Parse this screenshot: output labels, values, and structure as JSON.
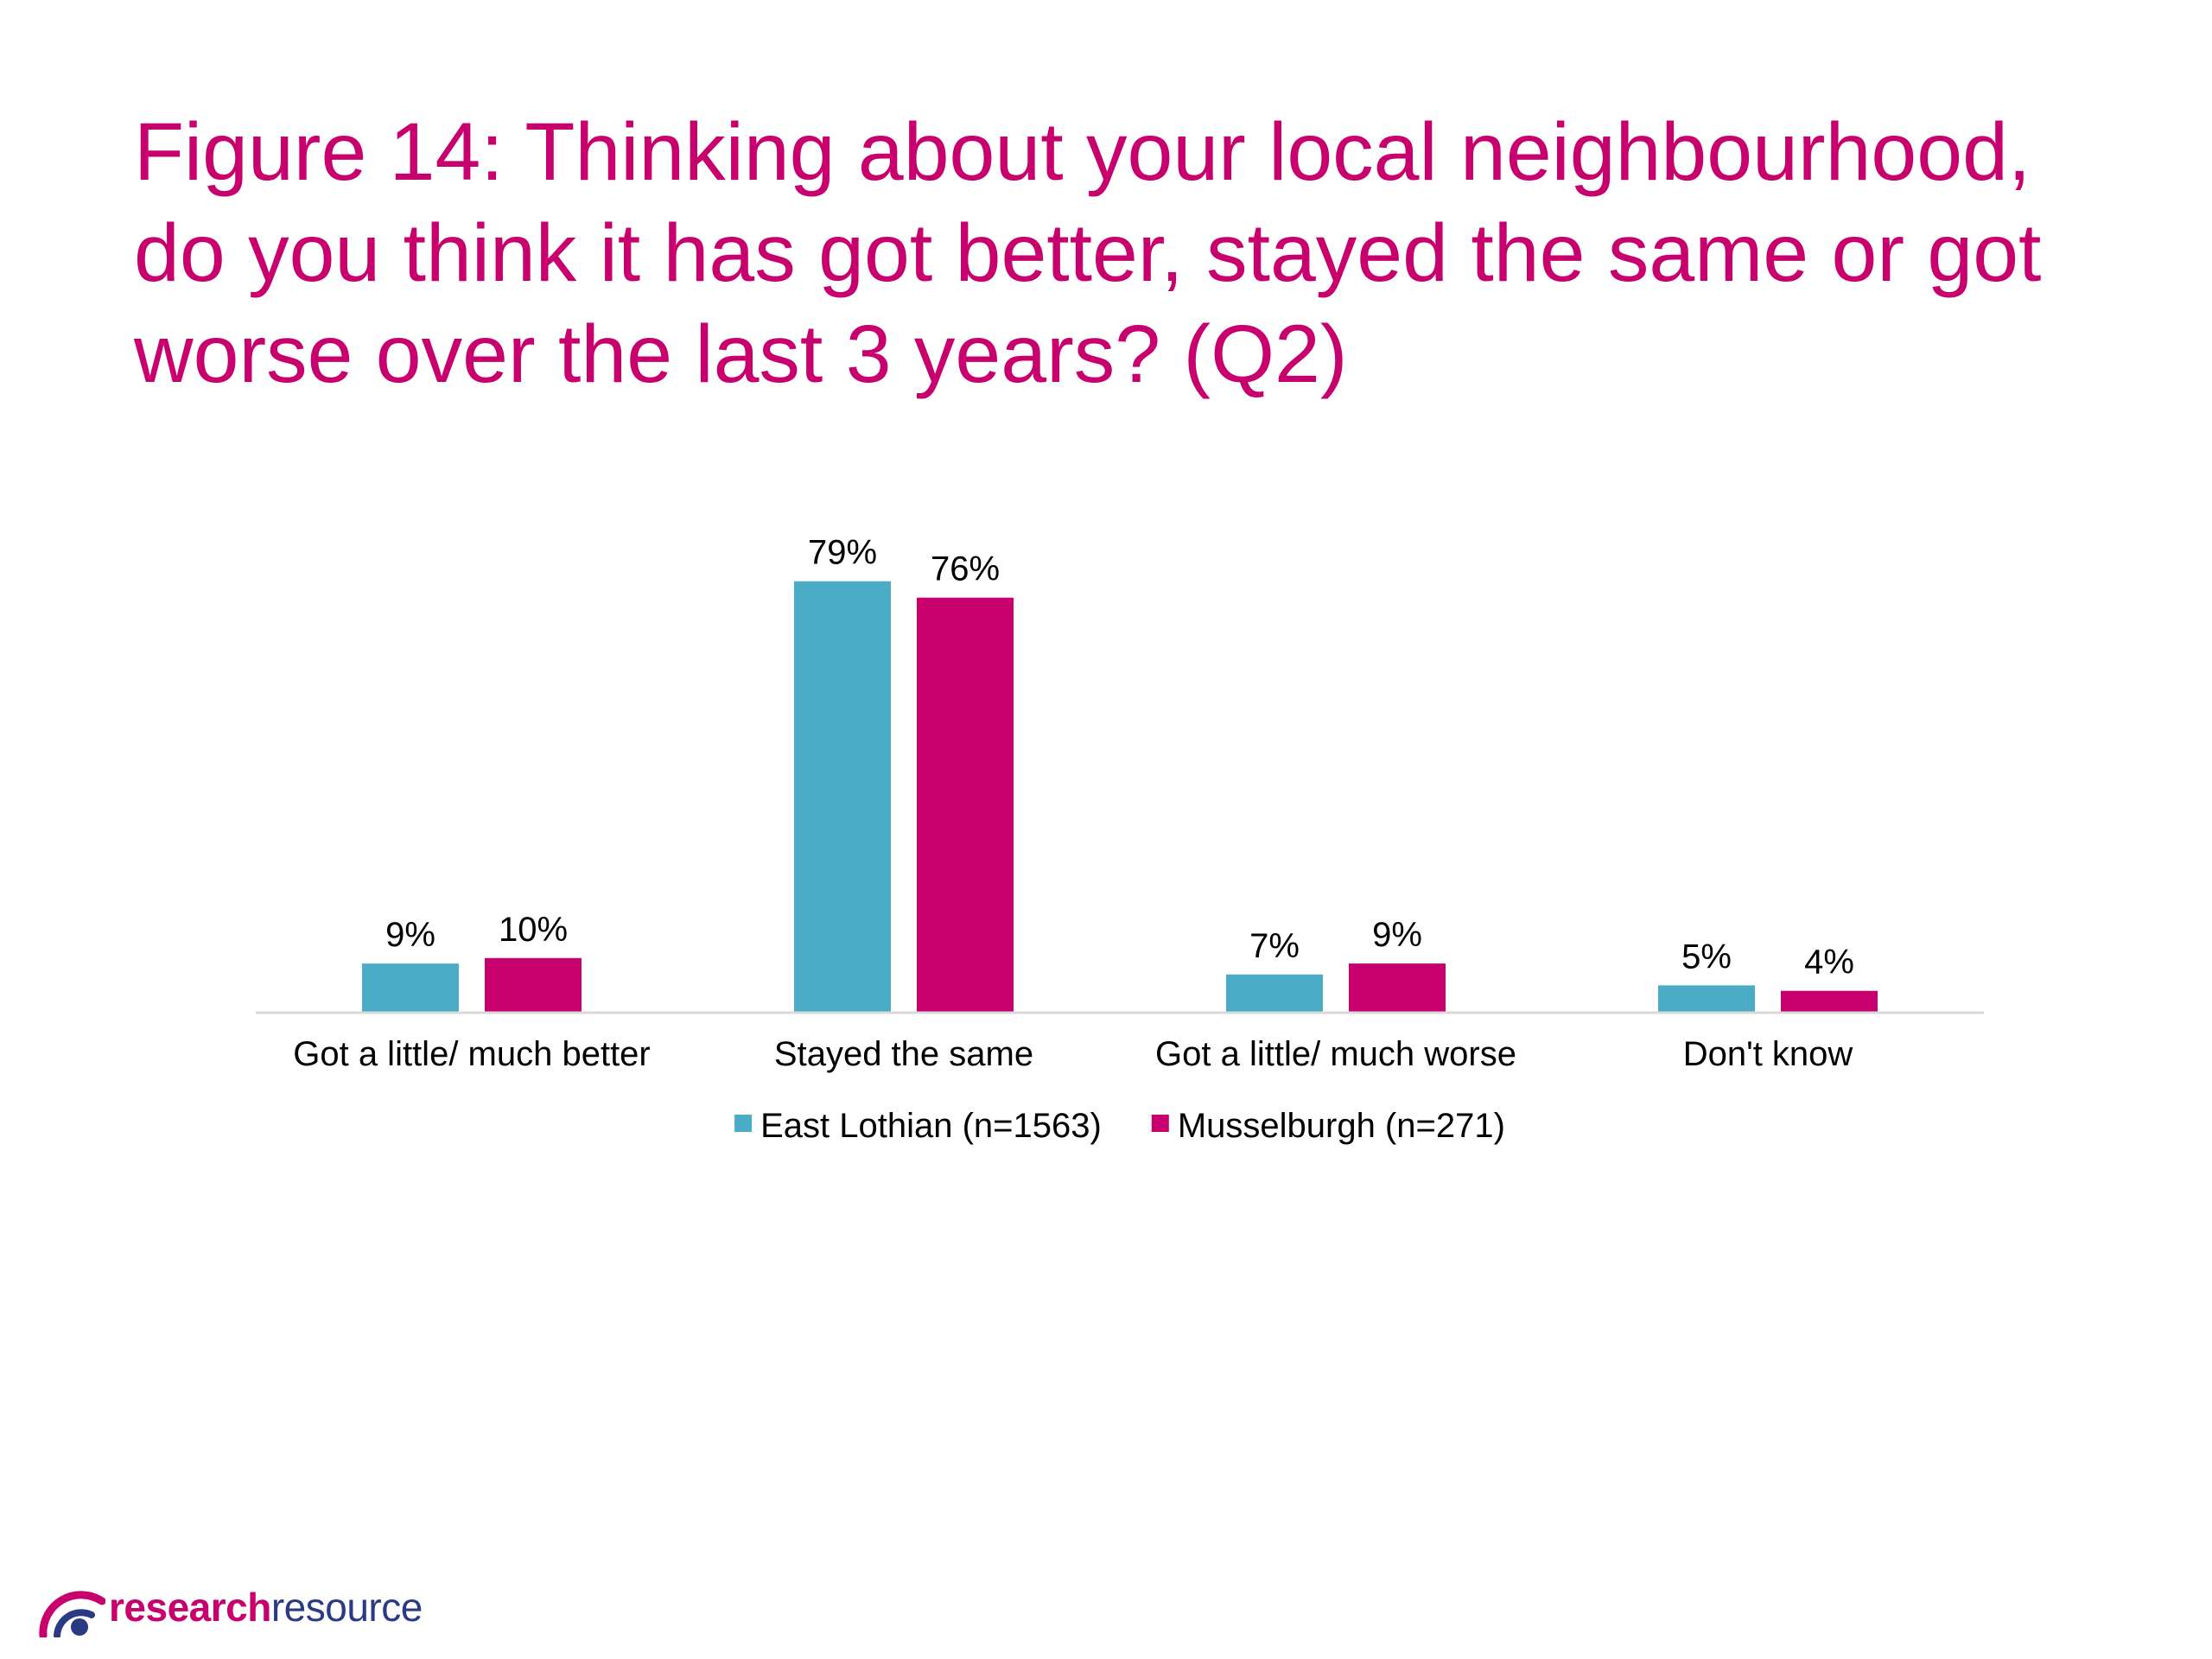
{
  "title": "Figure 14: Thinking about your local neighbourhood, do you think it has got better, stayed the same or got worse over the last 3 years? (Q2)",
  "colors": {
    "title": "#c8006e",
    "east_lothian": "#4bacc6",
    "musselburgh": "#c8006e",
    "axis": "#d9d9d9",
    "label_text": "#000000",
    "logo_navy": "#2b3a85",
    "logo_magenta": "#c8006e"
  },
  "chart_data": {
    "type": "bar",
    "categories": [
      "Got a little/ much better",
      "Stayed the same",
      "Got a little/ much worse",
      "Don't know"
    ],
    "series": [
      {
        "name": "East Lothian (n=1563)",
        "values": [
          9,
          79,
          7,
          5
        ],
        "labels": [
          "9%",
          "79%",
          "7%",
          "5%"
        ],
        "color": "#4bacc6"
      },
      {
        "name": "Musselburgh (n=271)",
        "values": [
          10,
          76,
          9,
          4
        ],
        "labels": [
          "10%",
          "76%",
          "9%",
          "4%"
        ],
        "color": "#c8006e"
      }
    ],
    "unit": "%",
    "ylim": [
      0,
      80
    ],
    "grid": false,
    "legend_position": "bottom"
  },
  "logo": {
    "part1": "research",
    "part2": "resource"
  }
}
